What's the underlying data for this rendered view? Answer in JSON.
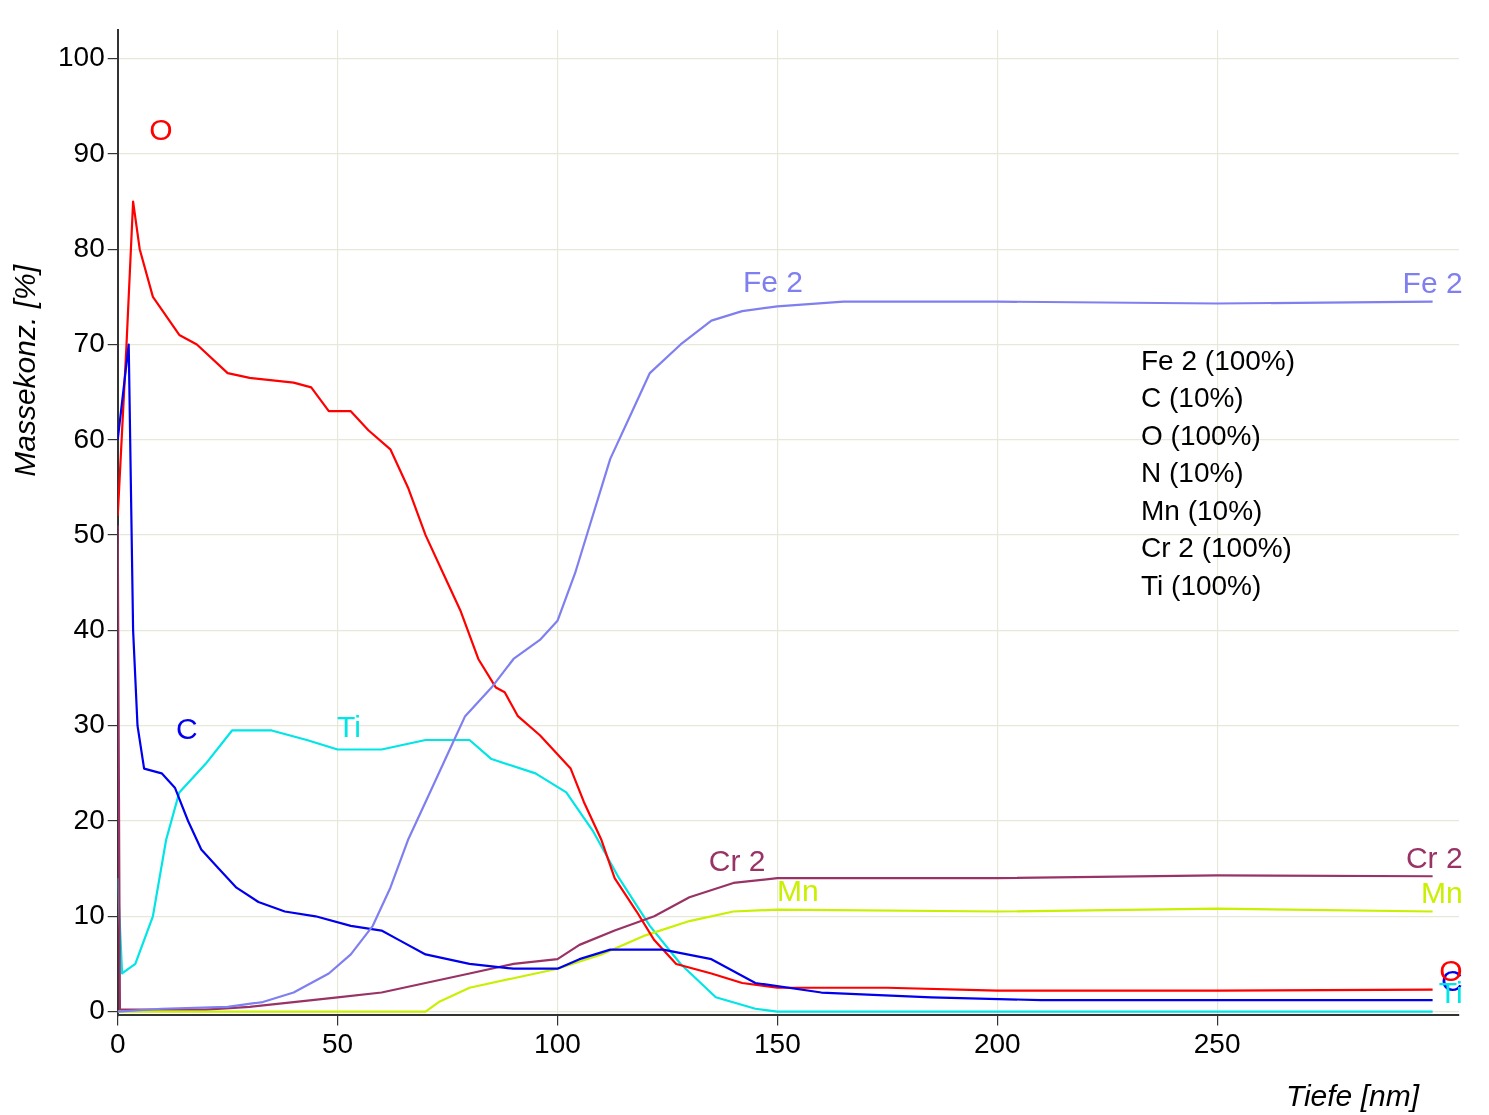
{
  "chart_data": {
    "type": "line",
    "xlabel": "Tiefe [nm]",
    "ylabel": "Massekonz. [%]",
    "xlim": [
      0,
      305
    ],
    "ylim": [
      -0.4,
      103
    ],
    "xticks": [
      0,
      50,
      100,
      150,
      200,
      250
    ],
    "yticks": [
      0,
      10,
      20,
      30,
      40,
      50,
      60,
      70,
      80,
      90,
      100
    ],
    "grid": true,
    "legend": false,
    "marker": "none",
    "line_style": "solid",
    "series": [
      {
        "name": "Fe 2",
        "color": "#7f7ff0",
        "x": [
          0,
          10,
          25,
          33,
          40,
          48,
          53,
          58,
          62,
          66,
          70,
          75,
          79,
          85,
          90,
          96,
          100,
          104,
          108,
          112,
          117,
          121,
          128,
          135,
          142,
          150,
          165,
          200,
          250,
          299
        ],
        "values": [
          0,
          0.3,
          0.5,
          1,
          2,
          4,
          6,
          9,
          13,
          18,
          22,
          27,
          31,
          34,
          37,
          39,
          41,
          46,
          52,
          58,
          63,
          67,
          70,
          72.5,
          73.5,
          74,
          74.5,
          74.5,
          74.3,
          74.5
        ]
      },
      {
        "name": "C",
        "color": "#0000ee",
        "x": [
          0,
          1,
          2.5,
          3.5,
          4.5,
          6,
          10,
          13,
          16,
          19,
          23,
          27,
          32,
          38,
          45,
          53,
          60,
          64,
          70,
          80,
          90,
          100,
          105,
          112,
          124,
          135,
          145,
          160,
          185,
          210,
          299
        ],
        "values": [
          60,
          64,
          70,
          40,
          30,
          25.5,
          25,
          23.5,
          20,
          17,
          15,
          13,
          11.5,
          10.5,
          10,
          9,
          8.5,
          7.5,
          6,
          5,
          4.5,
          4.5,
          5.5,
          6.5,
          6.5,
          5.5,
          3,
          2,
          1.5,
          1.2,
          1.2
        ]
      },
      {
        "name": "O",
        "color": "#ff0000",
        "x": [
          0,
          2,
          3.5,
          5,
          8,
          14,
          18,
          25,
          30,
          40,
          44,
          48,
          53,
          57,
          62,
          66,
          70,
          74,
          78,
          82,
          86,
          88,
          91,
          96,
          100,
          103,
          106,
          110,
          113,
          118,
          122,
          127,
          135,
          142,
          150,
          175,
          200,
          250,
          299
        ],
        "values": [
          52,
          70,
          85,
          80,
          75,
          71,
          70,
          67,
          66.5,
          66,
          65.5,
          63,
          63,
          61,
          59,
          55,
          50,
          46,
          42,
          37,
          34,
          33.5,
          31,
          29,
          27,
          25.5,
          22,
          18,
          14,
          10.5,
          7.5,
          5,
          4,
          3,
          2.5,
          2.5,
          2.2,
          2.2,
          2.3
        ]
      },
      {
        "name": "Mn",
        "color": "#c8f000",
        "x": [
          0,
          70,
          73,
          80,
          90,
          100,
          110,
          120,
          130,
          140,
          150,
          200,
          250,
          299
        ],
        "values": [
          0,
          0,
          1,
          2.5,
          3.5,
          4.5,
          6,
          8,
          9.5,
          10.5,
          10.7,
          10.5,
          10.8,
          10.5
        ]
      },
      {
        "name": "Cr 2",
        "color": "#993366",
        "x": [
          0,
          0.5,
          20,
          30,
          40,
          50,
          60,
          70,
          80,
          90,
          100,
          105,
          113,
          122,
          130,
          140,
          150,
          200,
          250,
          299
        ],
        "values": [
          51,
          0.2,
          0.2,
          0.5,
          1,
          1.5,
          2,
          3,
          4,
          5,
          5.5,
          7,
          8.5,
          10,
          12,
          13.5,
          14,
          14,
          14.3,
          14.2
        ]
      },
      {
        "name": "Ti",
        "color": "#00e5e5",
        "x": [
          0,
          1,
          4,
          8,
          11,
          14,
          20,
          26,
          35,
          43,
          50,
          60,
          70,
          80,
          85,
          95,
          102,
          108,
          114,
          121,
          128,
          136,
          145,
          150,
          299
        ],
        "values": [
          14,
          4,
          5,
          10,
          18,
          23,
          26,
          29.5,
          29.5,
          28.5,
          27.5,
          27.5,
          28.5,
          28.5,
          26.5,
          25,
          23,
          19,
          14,
          9,
          5,
          1.5,
          0.3,
          0,
          0
        ]
      }
    ],
    "annotations": [
      "Fe 2 (100%)",
      "C (10%)",
      "O (100%)",
      "N (10%)",
      "Mn (10%)",
      "Cr 2 (100%)",
      "Ti (100%)"
    ]
  }
}
